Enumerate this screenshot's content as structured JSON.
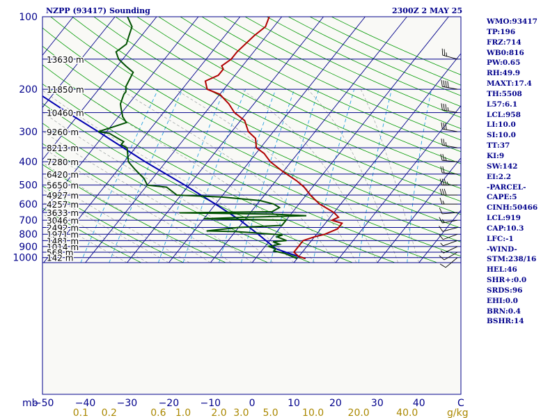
{
  "header": {
    "station": "NZPP (93417) Sounding",
    "time": "2300Z  2 MAY 25"
  },
  "colors": {
    "isobar": "#00008b",
    "isotherm": "#00008b",
    "dry_adiabat": "#009900",
    "moist_adiabat": "#9aa0a0",
    "mixing_ratio": "#22a0e0",
    "temperature": "#b00000",
    "dewpoint": "#005000",
    "parcel": "#0000b0",
    "stats_text": "#00008b",
    "mixing_label": "#aa8800"
  },
  "stats": [
    "WMO:93417",
    "TP:196",
    "FRZ:714",
    "WB0:816",
    "PW:0.65",
    "RH:49.9",
    "MAXT:17.4",
    "TH:5508",
    "L57:6.1",
    "LCL:958",
    "LI:10.0",
    "SI:10.0",
    "TT:37",
    "KI:9",
    "SW:142",
    "EI:2.2",
    "-PARCEL-",
    "CAPE:5",
    "CINH:50466",
    "LCL:919",
    "CAP:10.3",
    "LFC:-1",
    "-WIND-",
    "STM:238/16",
    "HEL:46",
    "SHR+:0.0",
    "SRDS:96",
    "EHI:0.0",
    "BRN:0.4",
    "BSHR:14"
  ],
  "chart_data": {
    "type": "skew-t",
    "pressure_unit": "mb",
    "temperature_unit": "C",
    "mixing_ratio_unit": "g/kg",
    "pressure_ticks": [
      100,
      200,
      300,
      400,
      500,
      600,
      700,
      800,
      900,
      1000
    ],
    "temperature_ticks": [
      -50,
      -40,
      -30,
      -20,
      -10,
      0,
      10,
      20,
      30,
      40
    ],
    "mixing_ratio_ticks": [
      "0.1",
      "0.2",
      "0.6",
      "1.0",
      "2.0",
      "3.0",
      "5.0",
      "10.0",
      "20.0",
      "40.0"
    ],
    "heights": [
      {
        "p": 150,
        "label": "13630 m"
      },
      {
        "p": 200,
        "label": "11850 m"
      },
      {
        "p": 250,
        "label": "10460 m"
      },
      {
        "p": 300,
        "label": "9260 m"
      },
      {
        "p": 350,
        "label": "8213 m"
      },
      {
        "p": 400,
        "label": "7280 m"
      },
      {
        "p": 450,
        "label": "6420 m"
      },
      {
        "p": 500,
        "label": "5650 m"
      },
      {
        "p": 550,
        "label": "4927 m"
      },
      {
        "p": 600,
        "label": "4257 m"
      },
      {
        "p": 650,
        "label": "3633 m"
      },
      {
        "p": 700,
        "label": "3046 m"
      },
      {
        "p": 750,
        "label": "2492 m"
      },
      {
        "p": 800,
        "label": "1971 m"
      },
      {
        "p": 850,
        "label": "1481 m"
      },
      {
        "p": 900,
        "label": "1014 m"
      },
      {
        "p": 950,
        "label": "568 m"
      },
      {
        "p": 1000,
        "label": "142 m"
      }
    ],
    "temperature_profile": [
      [
        1010,
        12
      ],
      [
        990,
        10
      ],
      [
        950,
        8
      ],
      [
        900,
        8
      ],
      [
        850,
        8
      ],
      [
        820,
        10
      ],
      [
        800,
        12
      ],
      [
        760,
        14
      ],
      [
        720,
        14
      ],
      [
        700,
        11
      ],
      [
        680,
        12
      ],
      [
        650,
        10
      ],
      [
        600,
        5
      ],
      [
        575,
        3
      ],
      [
        550,
        1
      ],
      [
        510,
        -2
      ],
      [
        480,
        -5
      ],
      [
        440,
        -10
      ],
      [
        400,
        -15
      ],
      [
        370,
        -18
      ],
      [
        350,
        -21
      ],
      [
        320,
        -23
      ],
      [
        300,
        -26
      ],
      [
        270,
        -29
      ],
      [
        250,
        -33
      ],
      [
        230,
        -36
      ],
      [
        210,
        -40
      ],
      [
        200,
        -44
      ],
      [
        185,
        -46
      ],
      [
        175,
        -44
      ],
      [
        165,
        -44
      ],
      [
        160,
        -45
      ],
      [
        150,
        -44
      ],
      [
        140,
        -44
      ],
      [
        120,
        -43
      ],
      [
        110,
        -42
      ],
      [
        100,
        -43
      ]
    ],
    "dewpoint_profile": [
      [
        1010,
        10
      ],
      [
        960,
        6
      ],
      [
        940,
        3
      ],
      [
        920,
        3
      ],
      [
        900,
        1
      ],
      [
        880,
        3
      ],
      [
        860,
        1
      ],
      [
        850,
        4
      ],
      [
        820,
        1
      ],
      [
        805,
        2
      ],
      [
        790,
        -5
      ],
      [
        780,
        -10
      ],
      [
        775,
        -17
      ],
      [
        750,
        -10
      ],
      [
        735,
        0
      ],
      [
        700,
        0
      ],
      [
        690,
        -20
      ],
      [
        680,
        -10
      ],
      [
        670,
        4
      ],
      [
        660,
        -5
      ],
      [
        652,
        -27
      ],
      [
        645,
        -5
      ],
      [
        620,
        -4
      ],
      [
        600,
        -6
      ],
      [
        580,
        -10
      ],
      [
        560,
        -20
      ],
      [
        550,
        -31
      ],
      [
        510,
        -35
      ],
      [
        500,
        -40
      ],
      [
        470,
        -42
      ],
      [
        430,
        -46
      ],
      [
        400,
        -49
      ],
      [
        350,
        -52
      ],
      [
        340,
        -54
      ],
      [
        330,
        -54
      ],
      [
        320,
        -56
      ],
      [
        305,
        -59
      ],
      [
        300,
        -62
      ],
      [
        290,
        -60
      ],
      [
        275,
        -57
      ],
      [
        260,
        -59
      ],
      [
        240,
        -61
      ],
      [
        230,
        -62
      ],
      [
        210,
        -63
      ],
      [
        205,
        -63
      ],
      [
        195,
        -64
      ],
      [
        170,
        -65
      ],
      [
        160,
        -68
      ],
      [
        150,
        -71
      ],
      [
        140,
        -73
      ],
      [
        130,
        -72
      ],
      [
        120,
        -73
      ],
      [
        110,
        -74
      ],
      [
        100,
        -77
      ]
    ],
    "parcel_profile": [
      [
        1010,
        12
      ],
      [
        960,
        7
      ],
      [
        919,
        3
      ],
      [
        800,
        -4
      ],
      [
        700,
        -11
      ],
      [
        600,
        -20
      ],
      [
        500,
        -31
      ],
      [
        400,
        -45
      ],
      [
        300,
        -62
      ],
      [
        250,
        -73
      ],
      [
        200,
        -86
      ],
      [
        150,
        -101
      ],
      [
        125,
        -111
      ]
    ],
    "wind_barbs": [
      {
        "p": 1000,
        "dir": 230,
        "speed": 10
      },
      {
        "p": 950,
        "dir": 240,
        "speed": 10
      },
      {
        "p": 900,
        "dir": 245,
        "speed": 5
      },
      {
        "p": 850,
        "dir": 250,
        "speed": 5
      },
      {
        "p": 800,
        "dir": 250,
        "speed": 10
      },
      {
        "p": 750,
        "dir": 255,
        "speed": 10
      },
      {
        "p": 700,
        "dir": 260,
        "speed": 15
      },
      {
        "p": 650,
        "dir": 265,
        "speed": 10
      },
      {
        "p": 600,
        "dir": 270,
        "speed": 15
      },
      {
        "p": 550,
        "dir": 270,
        "speed": 30
      },
      {
        "p": 500,
        "dir": 270,
        "speed": 35
      },
      {
        "p": 450,
        "dir": 275,
        "speed": 20
      },
      {
        "p": 400,
        "dir": 275,
        "speed": 25
      },
      {
        "p": 350,
        "dir": 280,
        "speed": 25
      },
      {
        "p": 300,
        "dir": 280,
        "speed": 30
      },
      {
        "p": 250,
        "dir": 280,
        "speed": 35
      },
      {
        "p": 200,
        "dir": 280,
        "speed": 40
      },
      {
        "p": 150,
        "dir": 285,
        "speed": 25
      }
    ]
  }
}
